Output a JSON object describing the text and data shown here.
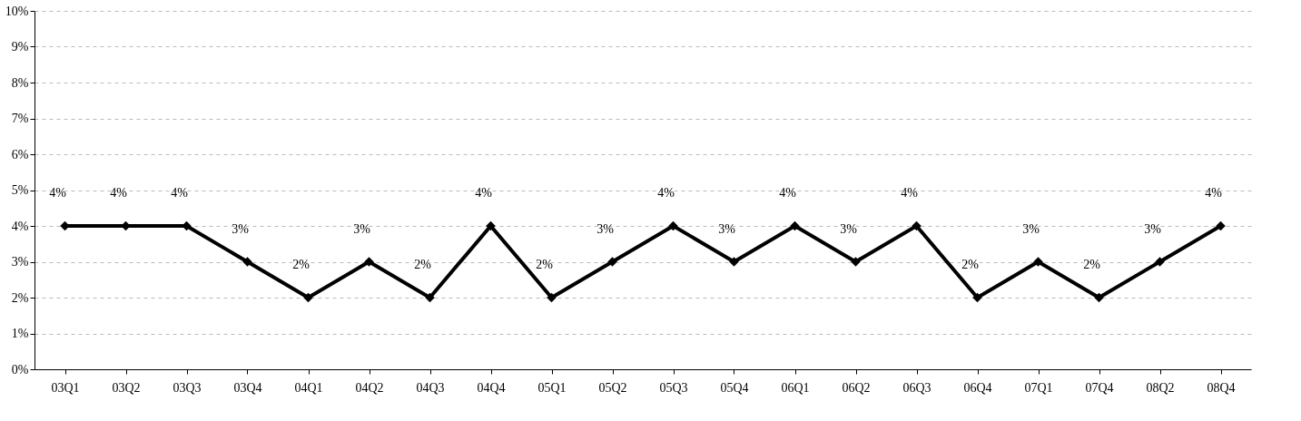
{
  "chart_data": {
    "type": "line",
    "categories": [
      "03Q1",
      "03Q2",
      "03Q3",
      "03Q4",
      "04Q1",
      "04Q2",
      "04Q3",
      "04Q4",
      "05Q1",
      "05Q2",
      "05Q3",
      "05Q4",
      "06Q1",
      "06Q2",
      "06Q3",
      "06Q4",
      "07Q1",
      "07Q4",
      "08Q2",
      "08Q4"
    ],
    "series": [
      {
        "color": "#000000",
        "values": [
          4,
          4,
          4,
          3,
          2,
          3,
          2,
          4,
          2,
          3,
          4,
          3,
          4,
          3,
          4,
          2,
          3,
          2,
          3,
          4
        ],
        "value_labels": [
          "4%",
          "4%",
          "4%",
          "3%",
          "2%",
          "3%",
          "2%",
          "4%",
          "2%",
          "3%",
          "4%",
          "3%",
          "4%",
          "3%",
          "4%",
          "2%",
          "3%",
          "2%",
          "3%",
          "4%"
        ]
      }
    ],
    "ylim": [
      0,
      10
    ],
    "yticks": [
      {
        "value": 0,
        "label": "0%"
      },
      {
        "value": 1,
        "label": "1%"
      },
      {
        "value": 2,
        "label": "2%"
      },
      {
        "value": 3,
        "label": "3%"
      },
      {
        "value": 4,
        "label": "4%"
      },
      {
        "value": 5,
        "label": "5%"
      },
      {
        "value": 6,
        "label": "6%"
      },
      {
        "value": 7,
        "label": "7%"
      },
      {
        "value": 8,
        "label": "8%"
      },
      {
        "value": 9,
        "label": "9%"
      },
      {
        "value": 10,
        "label": "10%"
      }
    ],
    "grid": "y",
    "marker": "diamond",
    "line_style": "solid"
  }
}
